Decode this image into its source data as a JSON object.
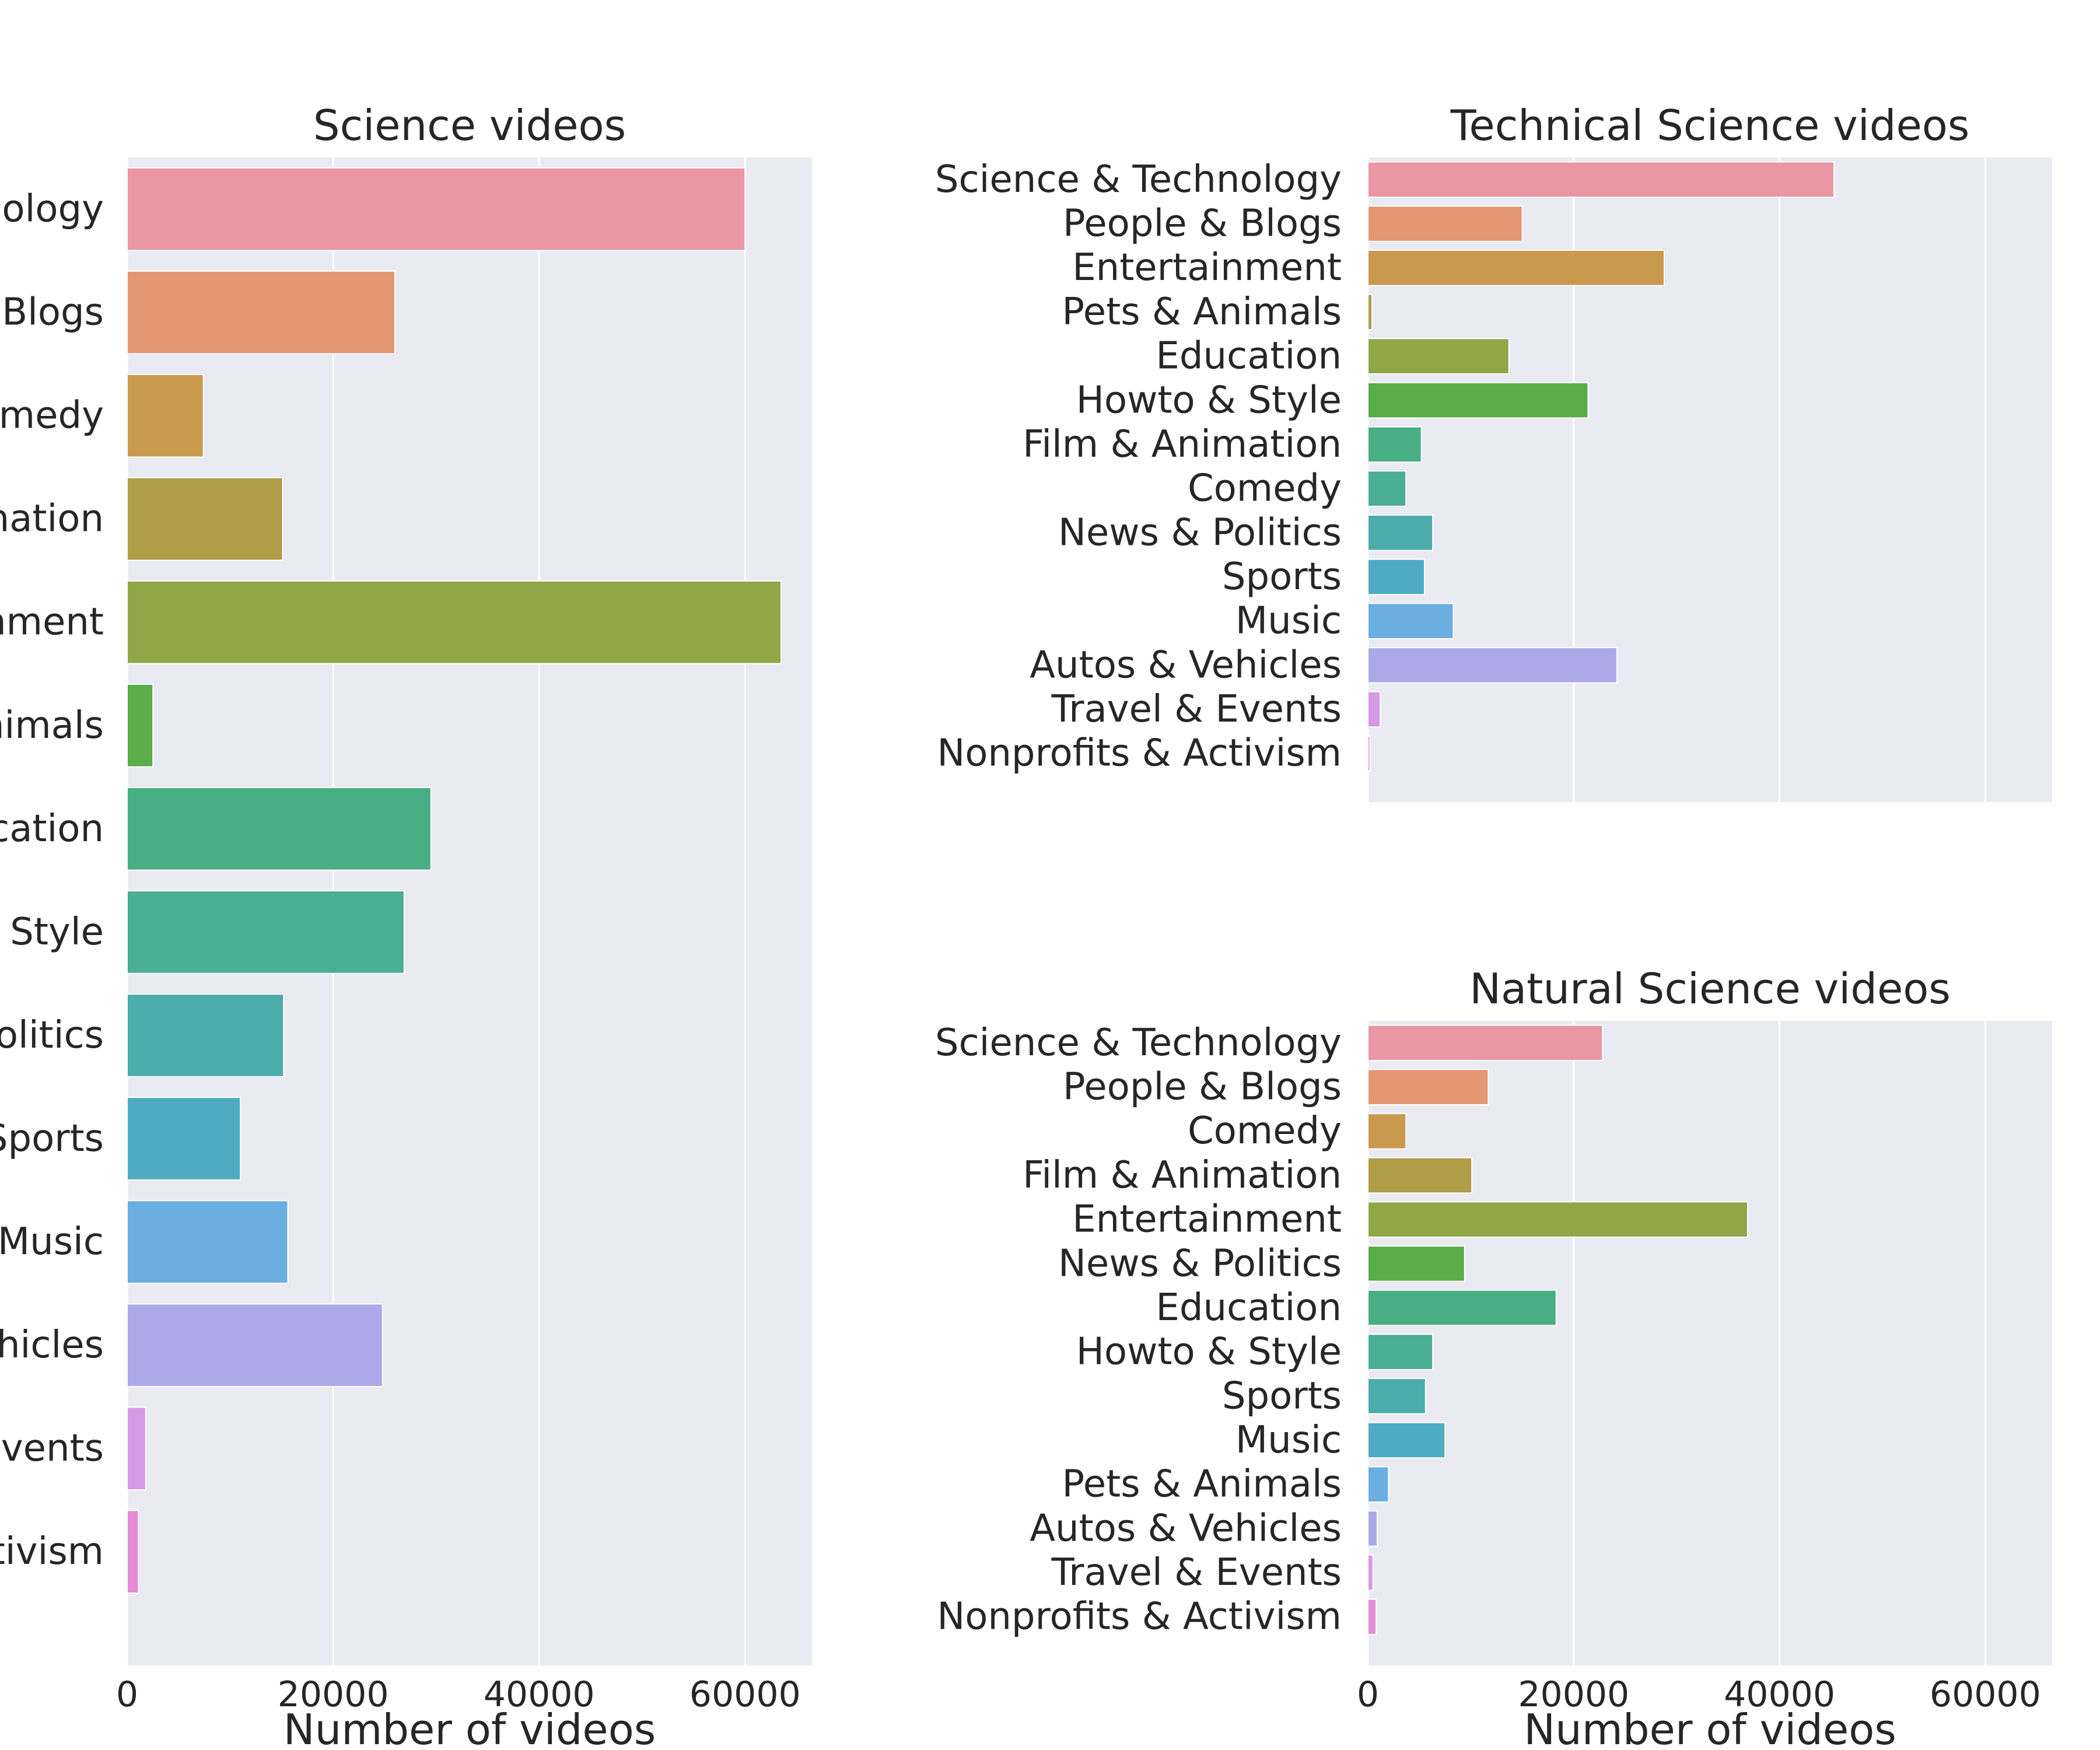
{
  "chart_data": [
    {
      "type": "bar",
      "orientation": "horizontal",
      "title": "Science videos",
      "xlabel": "Number of videos",
      "ylabel": "",
      "xlim": [
        0,
        66500
      ],
      "xticks": [
        0,
        20000,
        40000,
        60000
      ],
      "grid": true,
      "categories": [
        "Science & Technology",
        "People & Blogs",
        "Comedy",
        "Film & Animation",
        "Entertainment",
        "Pets & Animals",
        "Education",
        "Howto & Style",
        "News & Politics",
        "Sports",
        "Music",
        "Autos & Vehicles",
        "Travel & Events",
        "Nonprofits & Activism"
      ],
      "visible_labels": [
        "nology",
        "Blogs",
        "omedy",
        "mation",
        "nment",
        "nimals",
        "cation",
        "Style",
        "olitics",
        "Sports",
        "Music",
        "hicles",
        "Events",
        "tivism"
      ],
      "values": [
        60000,
        26000,
        7400,
        15100,
        63500,
        2500,
        29500,
        26900,
        15200,
        11000,
        15600,
        24800,
        1800,
        1100
      ],
      "colors": [
        "#ea96a3",
        "#e59673",
        "#c99a4e",
        "#af9d48",
        "#91a646",
        "#5aad48",
        "#4aae84",
        "#4aad96",
        "#4cabab",
        "#4eabc2",
        "#6aaee2",
        "#ada9e9",
        "#d798e6",
        "#e48dd4"
      ]
    },
    {
      "type": "bar",
      "orientation": "horizontal",
      "title": "Technical Science videos",
      "xlabel": "",
      "ylabel": "",
      "xlim": [
        0,
        66500
      ],
      "xticks": [
        0,
        20000,
        40000,
        60000
      ],
      "grid": true,
      "categories": [
        "Science & Technology",
        "People & Blogs",
        "Entertainment",
        "Pets & Animals",
        "Education",
        "Howto & Style",
        "Film & Animation",
        "Comedy",
        "News & Politics",
        "Sports",
        "Music",
        "Autos & Vehicles",
        "Travel & Events",
        "Nonprofits & Activism"
      ],
      "values": [
        45300,
        15000,
        28800,
        400,
        13700,
        21400,
        5200,
        3700,
        6300,
        5500,
        8300,
        24200,
        1200,
        200
      ],
      "colors": [
        "#ea96a3",
        "#e59673",
        "#c99a4e",
        "#af9d48",
        "#91a646",
        "#5aad48",
        "#4aae84",
        "#4aad96",
        "#4cabab",
        "#4eabc2",
        "#6aaee2",
        "#ada9e9",
        "#d798e6",
        "#e48dd4"
      ]
    },
    {
      "type": "bar",
      "orientation": "horizontal",
      "title": "Natural Science videos",
      "xlabel": "Number of videos",
      "ylabel": "",
      "xlim": [
        0,
        66500
      ],
      "xticks": [
        0,
        20000,
        40000,
        60000
      ],
      "grid": true,
      "categories": [
        "Science & Technology",
        "People & Blogs",
        "Comedy",
        "Film & Animation",
        "Entertainment",
        "News & Politics",
        "Education",
        "Howto & Style",
        "Sports",
        "Music",
        "Pets & Animals",
        "Autos & Vehicles",
        "Travel & Events",
        "Nonprofits & Activism"
      ],
      "values": [
        22800,
        11700,
        3700,
        10100,
        36900,
        9400,
        18300,
        6300,
        5600,
        7500,
        2000,
        900,
        500,
        800
      ],
      "colors": [
        "#ea96a3",
        "#e59673",
        "#c99a4e",
        "#af9d48",
        "#91a646",
        "#5aad48",
        "#4aae84",
        "#4aad96",
        "#4cabab",
        "#4eabc2",
        "#6aaee2",
        "#ada9e9",
        "#d798e6",
        "#e48dd4"
      ]
    }
  ]
}
